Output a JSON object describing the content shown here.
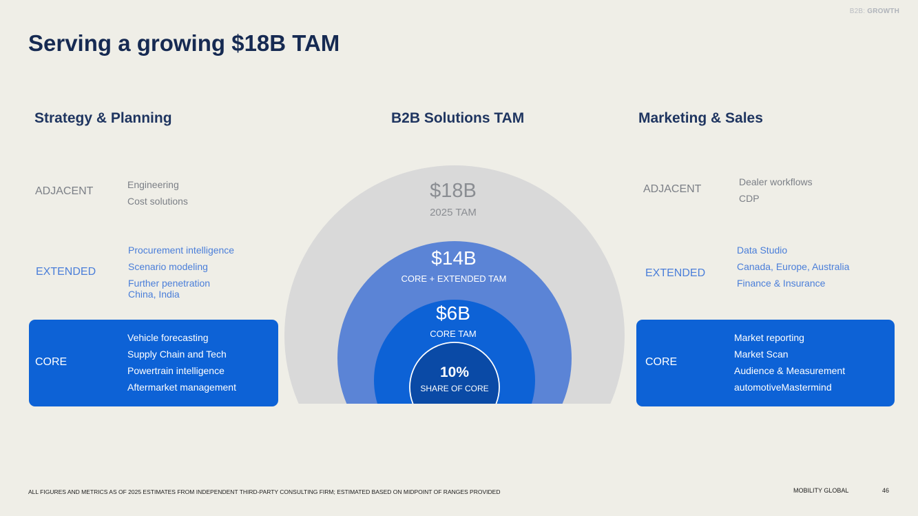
{
  "header": {
    "tag_prefix": "B2B:",
    "tag_bold": "GROWTH",
    "title": "Serving a growing $18B TAM"
  },
  "left": {
    "heading": "Strategy & Planning",
    "adjacent": {
      "label": "ADJACENT",
      "items": [
        "Engineering",
        "Cost solutions"
      ]
    },
    "extended": {
      "label": "EXTENDED",
      "items": [
        "Procurement intelligence",
        "Scenario modeling",
        "Further penetration",
        "China, India"
      ]
    },
    "core": {
      "label": "CORE",
      "items": [
        "Vehicle forecasting",
        "Supply Chain and Tech",
        "Powertrain intelligence",
        "Aftermarket management"
      ]
    }
  },
  "center": {
    "heading": "B2B Solutions TAM",
    "rings": [
      {
        "value": "$18B",
        "label": "2025 TAM",
        "color": "#d9d9d9"
      },
      {
        "value": "$14B",
        "label": "CORE + EXTENDED TAM",
        "color": "#5b84d6"
      },
      {
        "value": "$6B",
        "label": "CORE TAM",
        "color": "#0d62d6"
      },
      {
        "value": "10%",
        "label": "SHARE OF CORE",
        "color": "#0a4aa6"
      }
    ]
  },
  "right": {
    "heading": "Marketing & Sales",
    "adjacent": {
      "label": "ADJACENT",
      "items": [
        "Dealer workflows",
        "CDP"
      ]
    },
    "extended": {
      "label": "EXTENDED",
      "items": [
        "Data Studio",
        "Canada, Europe, Australia",
        "Finance & Insurance"
      ]
    },
    "core": {
      "label": "CORE",
      "items": [
        "Market reporting",
        "Market Scan",
        "Audience & Measurement",
        "automotiveMastermind"
      ]
    }
  },
  "footer": {
    "note": "ALL FIGURES AND METRICS AS OF 2025 ESTIMATES FROM INDEPENDENT THIRD-PARTY CONSULTING FIRM; ESTIMATED BASED ON MIDPOINT OF RANGES PROVIDED",
    "brand": "MOBILITY GLOBAL",
    "page": "46"
  },
  "colors": {
    "background": "#efeee7",
    "title": "#162a52",
    "core_box": "#0d62d6",
    "extended_text": "#4a7ed9",
    "adjacent_text": "#7b7f86"
  }
}
